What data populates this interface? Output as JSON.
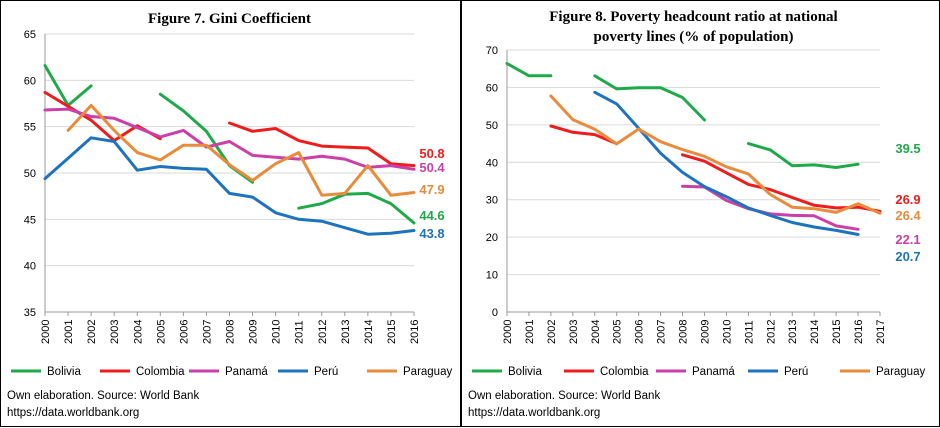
{
  "colors": {
    "Bolivia": "#1faa4a",
    "Colombia": "#ee1c1c",
    "Panamá": "#cc3fa8",
    "Perú": "#1e73be",
    "Paraguay": "#e88b3a",
    "grid": "#d9d9d9"
  },
  "legend": [
    "Bolivia",
    "Colombia",
    "Panamá",
    "Perú",
    "Paraguay"
  ],
  "footer": {
    "source": "Own elaboration. Source: World Bank",
    "url": "https://data.worldbank.org"
  },
  "chart_data": [
    {
      "type": "line",
      "title": "Figure  7. Gini Coefficient",
      "x": [
        "2000",
        "2001",
        "2002",
        "2003",
        "2004",
        "2005",
        "2006",
        "2007",
        "2008",
        "2009",
        "2010",
        "2011",
        "2012",
        "2013",
        "2014",
        "2015",
        "2016"
      ],
      "yticks": [
        35,
        40,
        45,
        50,
        55,
        60,
        65
      ],
      "ylim": [
        35,
        65
      ],
      "series": [
        {
          "name": "Bolivia",
          "values": [
            61.6,
            57.3,
            59.4,
            null,
            null,
            58.5,
            56.7,
            54.5,
            50.8,
            49.0,
            null,
            46.2,
            46.7,
            47.7,
            47.8,
            46.7,
            44.6
          ]
        },
        {
          "name": "Colombia",
          "values": [
            58.7,
            57.2,
            55.7,
            53.5,
            55.1,
            53.7,
            null,
            null,
            55.4,
            54.5,
            54.8,
            53.5,
            52.9,
            52.8,
            52.7,
            51.0,
            50.8
          ]
        },
        {
          "name": "Panamá",
          "values": [
            56.8,
            56.9,
            56.1,
            55.9,
            54.9,
            53.9,
            54.6,
            52.8,
            53.4,
            51.9,
            51.7,
            51.5,
            51.8,
            51.5,
            50.6,
            50.8,
            50.4
          ]
        },
        {
          "name": "Perú",
          "values": [
            49.4,
            51.6,
            53.8,
            53.4,
            50.3,
            50.7,
            50.5,
            50.4,
            47.8,
            47.4,
            45.7,
            45.0,
            44.8,
            44.1,
            43.4,
            43.5,
            43.8
          ]
        },
        {
          "name": "Paraguay",
          "values": [
            null,
            54.6,
            57.3,
            54.6,
            52.2,
            51.4,
            53.0,
            53.0,
            50.9,
            49.2,
            51.0,
            52.2,
            47.6,
            47.8,
            50.8,
            47.6,
            47.9
          ]
        }
      ],
      "end_labels": [
        {
          "name": "Colombia",
          "text": "50.8"
        },
        {
          "name": "Panamá",
          "text": "50.4"
        },
        {
          "name": "Paraguay",
          "text": "47.9"
        },
        {
          "name": "Bolivia",
          "text": "44.6"
        },
        {
          "name": "Perú",
          "text": "43.8"
        }
      ]
    },
    {
      "type": "line",
      "title": "Figure  8. Poverty headcount  ratio at national",
      "title_line2": "poverty lines (% of population)",
      "x": [
        "2000",
        "2001",
        "2002",
        "2003",
        "2004",
        "2005",
        "2006",
        "2007",
        "2008",
        "2009",
        "2010",
        "2011",
        "2012",
        "2013",
        "2014",
        "2015",
        "2016",
        "2017"
      ],
      "yticks": [
        0,
        10,
        20,
        30,
        40,
        50,
        60,
        70
      ],
      "ylim": [
        0,
        70
      ],
      "series": [
        {
          "name": "Bolivia",
          "values": [
            66.4,
            63.1,
            63.1,
            null,
            63.1,
            59.6,
            59.9,
            59.9,
            57.3,
            51.3,
            null,
            45.0,
            43.3,
            39.1,
            39.3,
            38.6,
            39.5,
            null
          ]
        },
        {
          "name": "Colombia",
          "values": [
            null,
            null,
            49.7,
            48.0,
            47.4,
            45.0,
            null,
            null,
            42.0,
            40.3,
            37.2,
            34.1,
            32.7,
            30.6,
            28.5,
            27.8,
            28.0,
            26.9
          ]
        },
        {
          "name": "Panamá",
          "values": [
            null,
            null,
            null,
            null,
            null,
            null,
            null,
            null,
            33.6,
            33.4,
            29.8,
            27.6,
            26.2,
            25.8,
            25.7,
            23.0,
            22.1,
            null
          ]
        },
        {
          "name": "Perú",
          "values": [
            null,
            null,
            null,
            null,
            58.7,
            55.6,
            49.1,
            42.4,
            37.3,
            33.5,
            30.8,
            27.8,
            25.8,
            23.9,
            22.7,
            21.8,
            20.7,
            null
          ]
        },
        {
          "name": "Paraguay",
          "values": [
            null,
            null,
            57.7,
            51.4,
            48.8,
            44.9,
            48.9,
            45.5,
            43.4,
            41.6,
            38.8,
            36.9,
            31.4,
            28.0,
            27.6,
            26.6,
            28.9,
            26.4
          ]
        }
      ],
      "end_labels": [
        {
          "name": "Bolivia",
          "text": "39.5"
        },
        {
          "name": "Colombia",
          "text": "26.9"
        },
        {
          "name": "Paraguay",
          "text": "26.4"
        },
        {
          "name": "Panamá",
          "text": "22.1"
        },
        {
          "name": "Perú",
          "text": "20.7"
        }
      ]
    }
  ]
}
